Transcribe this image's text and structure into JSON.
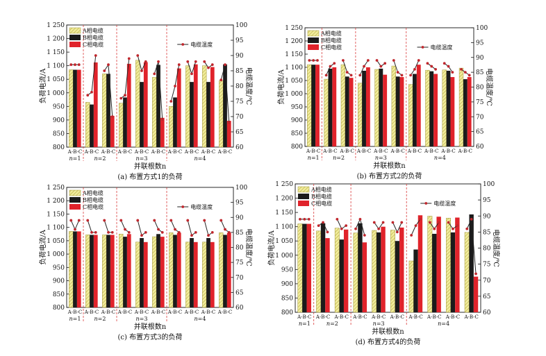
{
  "chart_data": [
    {
      "type": "bar",
      "caption": "(a)  布置方式1的负荷",
      "xlabel": "并联根数n",
      "ylabel": "负荷电流/A",
      "y2label": "电缆温度/℃",
      "ylim": [
        800,
        1250
      ],
      "y2lim": [
        60,
        100
      ],
      "yticks": [
        "800",
        "850",
        "900",
        "950",
        "1 000",
        "1 050",
        "1 100",
        "1 150",
        "1 200",
        "1 250"
      ],
      "y2ticks": [
        "60",
        "65",
        "70",
        "75",
        "80",
        "85",
        "90",
        "95",
        "100"
      ],
      "legend": [
        "A相电缆",
        "B相电缆",
        "C相电缆"
      ],
      "legend2": "电缆温度",
      "cat_label": "A-B-C",
      "n_labels": [
        "n=1",
        "n=2",
        "n=3",
        "n=4"
      ],
      "groups": [
        {
          "n": 1,
          "bars": [
            [
              1085,
              1085,
              1085
            ]
          ],
          "temp": [
            [
              87,
              87,
              87
            ]
          ]
        },
        {
          "n": 2,
          "bars": [
            [
              965,
              957,
              1112
            ],
            [
              1070,
              1070,
              915
            ]
          ],
          "temp": [
            [
              77,
              78,
              90
            ],
            [
              85,
              87,
              70
            ]
          ]
        },
        {
          "n": 3,
          "bars": [
            [
              962,
              983,
              1107
            ],
            [
              1120,
              1040,
              1113
            ],
            [
              1057,
              1103,
              908
            ]
          ],
          "temp": [
            [
              76,
              77,
              89
            ],
            [
              90,
              85,
              88
            ],
            [
              84,
              88,
              69
            ]
          ]
        },
        {
          "n": 4,
          "bars": [
            [
              950,
              983,
              1090
            ],
            [
              1100,
              1040,
              1105
            ],
            [
              1100,
              1040,
              1095
            ],
            [
              1045,
              1105,
              897
            ]
          ],
          "temp": [
            [
              75,
              80,
              87
            ],
            [
              88,
              84,
              88
            ],
            [
              88,
              86,
              87
            ],
            [
              82,
              87,
              68
            ]
          ]
        }
      ]
    },
    {
      "type": "bar",
      "caption": "(b)  布置方式2的负荷",
      "xlabel": "并联根数n",
      "ylabel": "负荷电流/A",
      "y2label": "电缆温度/℃",
      "ylim": [
        800,
        1250
      ],
      "y2lim": [
        60,
        100
      ],
      "yticks": [
        "800",
        "850",
        "900",
        "950",
        "1 000",
        "1 050",
        "1 100",
        "1 150",
        "1 200",
        "1 250"
      ],
      "y2ticks": [
        "60",
        "65",
        "70",
        "75",
        "80",
        "85",
        "90",
        "95",
        "100"
      ],
      "legend": [
        "A相电缆",
        "B相电缆",
        "C相电缆"
      ],
      "legend2": "电缆温度",
      "cat_label": "A-B-C",
      "n_labels": [
        "n=1",
        "n=2",
        "n=3",
        "n=4"
      ],
      "groups": [
        {
          "n": 1,
          "bars": [
            [
              1110,
              1110,
              1110
            ]
          ],
          "temp": [
            [
              89,
              89,
              89
            ]
          ]
        },
        {
          "n": 2,
          "bars": [
            [
              1055,
              1095,
              1100
            ],
            [
              1110,
              1065,
              1060
            ]
          ],
          "temp": [
            [
              84,
              87,
              88
            ],
            [
              89,
              85,
              84
            ]
          ]
        },
        {
          "n": 3,
          "bars": [
            [
              1040,
              1087,
              1100
            ],
            [
              1092,
              1095,
              1072
            ],
            [
              1105,
              1065,
              1063
            ]
          ],
          "temp": [
            [
              84,
              87,
              89
            ],
            [
              89,
              87,
              88
            ],
            [
              89,
              85,
              84
            ]
          ]
        },
        {
          "n": 4,
          "bars": [
            [
              1035,
              1075,
              1110
            ],
            [
              1089,
              1085,
              1075
            ],
            [
              1090,
              1087,
              1063
            ],
            [
              1097,
              1055,
              1063
            ]
          ],
          "temp": [
            [
              84,
              86,
              89
            ],
            [
              88,
              87,
              86
            ],
            [
              88,
              87,
              85
            ],
            [
              86,
              85,
              84
            ]
          ]
        }
      ]
    },
    {
      "type": "bar",
      "caption": "(c)  布置方式3的负荷",
      "xlabel": "并联根数n",
      "ylabel": "负荷电流/A",
      "y2label": "电缆温度/℃",
      "ylim": [
        800,
        1250
      ],
      "y2lim": [
        60,
        100
      ],
      "yticks": [
        "800",
        "850",
        "900",
        "950",
        "1 000",
        "1 050",
        "1 100",
        "1 150",
        "1 200",
        "1 250"
      ],
      "y2ticks": [
        "60",
        "65",
        "70",
        "75",
        "80",
        "85",
        "90",
        "95",
        "100"
      ],
      "legend": [
        "A相电缆",
        "B相电缆",
        "C相电缆"
      ],
      "legend2": "电缆温度",
      "cat_label": "A-B-C",
      "n_labels": [
        "n=1",
        "n=2",
        "n=3",
        "n=4"
      ],
      "groups": [
        {
          "n": 1,
          "bars": [
            [
              1085,
              1085,
              1085
            ]
          ],
          "temp": [
            [
              89,
              86,
              89
            ]
          ]
        },
        {
          "n": 2,
          "bars": [
            [
              1072,
              1072,
              1072
            ],
            [
              1072,
              1072,
              1072
            ]
          ],
          "temp": [
            [
              89,
              85,
              85
            ],
            [
              89,
              85,
              85
            ]
          ]
        },
        {
          "n": 3,
          "bars": [
            [
              1075,
              1065,
              1075
            ],
            [
              1045,
              1060,
              1045
            ],
            [
              1065,
              1075,
              1065
            ]
          ],
          "temp": [
            [
              89,
              86,
              85
            ],
            [
              89,
              84,
              85
            ],
            [
              89,
              86,
              85
            ]
          ]
        },
        {
          "n": 4,
          "bars": [
            [
              1080,
              1072,
              1080
            ],
            [
              1045,
              1060,
              1045
            ],
            [
              1045,
              1060,
              1045
            ],
            [
              1080,
              1072,
              1080
            ]
          ],
          "temp": [
            [
              89,
              86,
              85
            ],
            [
              89,
              84,
              85
            ],
            [
              89,
              84,
              85
            ],
            [
              89,
              86,
              85
            ]
          ]
        }
      ]
    },
    {
      "type": "bar",
      "caption": "(d)  布置方式4的负荷",
      "xlabel": "并联根数n",
      "ylabel": "负荷电流/A",
      "y2label": "电缆温度/℃",
      "ylim": [
        800,
        1250
      ],
      "y2lim": [
        60,
        100
      ],
      "yticks": [
        "800",
        "850",
        "900",
        "950",
        "1 000",
        "1 050",
        "1 100",
        "1 150",
        "1 200",
        "1 250"
      ],
      "y2ticks": [
        "60",
        "65",
        "70",
        "75",
        "80",
        "85",
        "90",
        "95",
        "100"
      ],
      "legend": [
        "A相电缆",
        "B相电缆",
        "C相电缆"
      ],
      "legend2": "电缆温度",
      "cat_label": "A-B-C",
      "n_labels": [
        "n=1",
        "n=2",
        "n=3",
        "n=4"
      ],
      "groups": [
        {
          "n": 1,
          "bars": [
            [
              1110,
              1110,
              1110
            ]
          ],
          "temp": [
            [
              89,
              89,
              89
            ]
          ]
        },
        {
          "n": 2,
          "bars": [
            [
              1085,
              1112,
              1060
            ],
            [
              1095,
              1055,
              1090
            ]
          ],
          "temp": [
            [
              87,
              88,
              85
            ],
            [
              89,
              86,
              87
            ]
          ]
        },
        {
          "n": 3,
          "bars": [
            [
              1078,
              1112,
              1045
            ],
            [
              1087,
              1080,
              1100
            ],
            [
              1088,
              1050,
              1097
            ]
          ],
          "temp": [
            [
              86,
              89,
              84
            ],
            [
              88,
              86,
              88
            ],
            [
              88,
              85,
              88
            ]
          ]
        },
        {
          "n": 4,
          "bars": [
            [
              980,
              1020,
              1140
            ],
            [
              1137,
              1075,
              1135
            ],
            [
              1130,
              1080,
              1132
            ],
            [
              1080,
              1143,
              925
            ]
          ],
          "temp": [
            [
              84,
              87,
              89
            ],
            [
              88,
              86,
              88
            ],
            [
              88,
              86,
              87
            ],
            [
              86,
              89,
              72
            ]
          ]
        }
      ]
    }
  ]
}
